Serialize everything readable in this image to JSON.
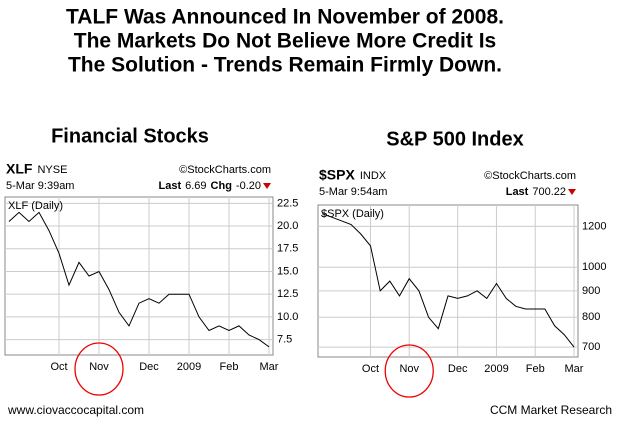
{
  "header": {
    "lines": [
      "TALF Was Announced In November of 2008.",
      "The Markets Do Not Believe More Credit Is",
      "The Solution - Trends Remain Firmly Down."
    ]
  },
  "footer": {
    "left": "www.ciovaccocapital.com",
    "right": "CCM Market Research"
  },
  "chart_data": [
    {
      "type": "line",
      "title": "Financial Stocks",
      "symbol": "XLF",
      "exchange": "NYSE",
      "source": "©StockCharts.com",
      "timestamp": "5-Mar 9:39am",
      "last_label": "Last",
      "last": "6.69",
      "chg_label": "Chg",
      "chg": "-0.20",
      "legend": "XLF (Daily)",
      "categories": [
        null,
        null,
        null,
        null,
        null,
        "Oct",
        null,
        null,
        null,
        "Nov",
        null,
        null,
        null,
        null,
        "Dec",
        null,
        null,
        null,
        "2009",
        null,
        null,
        null,
        "Feb",
        null,
        null,
        null,
        "Mar"
      ],
      "series": [
        {
          "name": "XLF",
          "color": "#000000",
          "values": [
            20.5,
            21.5,
            20.5,
            21.5,
            19.5,
            17,
            13.5,
            16,
            14.5,
            15,
            13,
            10.5,
            9,
            11.5,
            12,
            11.5,
            12.5,
            12.5,
            12.5,
            10,
            8.5,
            9,
            8.5,
            9,
            8,
            7.5,
            6.69
          ]
        }
      ],
      "ylim": [
        5.8,
        23.2
      ],
      "yticks": [
        7.5,
        {
          "value": 10,
          "label": "10.0"
        },
        12.5,
        {
          "value": 15,
          "label": "15.0"
        },
        17.5,
        {
          "value": 20,
          "label": "20.0"
        },
        22.5
      ],
      "grid": true,
      "log_scale": false
    },
    {
      "type": "line",
      "title": "S&P 500 Index",
      "symbol": "$SPX",
      "exchange": "INDX",
      "source": "©StockCharts.com",
      "timestamp": "5-Mar 9:54am",
      "last_label": "Last",
      "last": "700.22",
      "legend": "$SPX (Daily)",
      "categories": [
        null,
        null,
        null,
        null,
        null,
        "Oct",
        null,
        null,
        null,
        "Nov",
        null,
        null,
        null,
        null,
        "Dec",
        null,
        null,
        null,
        "2009",
        null,
        null,
        null,
        "Feb",
        null,
        null,
        null,
        "Mar"
      ],
      "series": [
        {
          "name": "$SPX",
          "color": "#000000",
          "values": [
            1270,
            1250,
            1230,
            1210,
            1160,
            1100,
            900,
            940,
            880,
            950,
            900,
            800,
            760,
            880,
            870,
            880,
            900,
            870,
            930,
            870,
            840,
            830,
            830,
            830,
            770,
            740,
            700.22
          ]
        }
      ],
      "ylim": [
        670,
        1320
      ],
      "yticks": [
        700,
        800,
        900,
        1000,
        1200
      ],
      "grid": true,
      "log_scale": true
    }
  ]
}
